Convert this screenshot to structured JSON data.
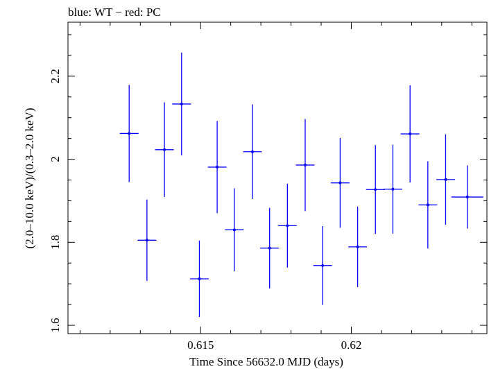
{
  "chart_data": {
    "type": "scatter",
    "title": "blue: WT − red: PC",
    "xlabel": "Time Since 56632.0 MJD (days)",
    "ylabel": "(2.0–10.0 keV)/(0.3–2.0 keV)",
    "xlim": [
      0.6106,
      0.6245
    ],
    "ylim": [
      1.58,
      2.33
    ],
    "xticks_major": [
      0.615,
      0.62
    ],
    "xtick_labels": [
      "0.615",
      "0.62"
    ],
    "xticks_minor": [
      0.611,
      0.612,
      0.613,
      0.614,
      0.616,
      0.617,
      0.618,
      0.619,
      0.621,
      0.622,
      0.623,
      0.624
    ],
    "yticks_major": [
      1.6,
      1.8,
      2.0,
      2.2
    ],
    "ytick_labels": [
      "1.6",
      "1.8",
      "2",
      "2.2"
    ],
    "yticks_minor": [
      1.65,
      1.7,
      1.75,
      1.85,
      1.9,
      1.95,
      2.05,
      2.1,
      2.15,
      2.25,
      2.3
    ],
    "grid": false,
    "series": [
      {
        "color": "#0000ff",
        "points": [
          {
            "x": 0.61263,
            "xerr": 0.00031,
            "y": 2.062,
            "yerr": 0.117
          },
          {
            "x": 0.61322,
            "xerr": 0.00031,
            "y": 1.805,
            "yerr": 0.098
          },
          {
            "x": 0.6138,
            "xerr": 0.00031,
            "y": 2.023,
            "yerr": 0.114
          },
          {
            "x": 0.61437,
            "xerr": 0.00031,
            "y": 2.133,
            "yerr": 0.124
          },
          {
            "x": 0.61496,
            "xerr": 0.00031,
            "y": 1.712,
            "yerr": 0.092
          },
          {
            "x": 0.61555,
            "xerr": 0.00031,
            "y": 1.981,
            "yerr": 0.111
          },
          {
            "x": 0.61612,
            "xerr": 0.00031,
            "y": 1.83,
            "yerr": 0.1
          },
          {
            "x": 0.61672,
            "xerr": 0.00031,
            "y": 2.018,
            "yerr": 0.114
          },
          {
            "x": 0.61729,
            "xerr": 0.00031,
            "y": 1.786,
            "yerr": 0.097
          },
          {
            "x": 0.61788,
            "xerr": 0.00031,
            "y": 1.84,
            "yerr": 0.101
          },
          {
            "x": 0.61847,
            "xerr": 0.00031,
            "y": 1.986,
            "yerr": 0.111
          },
          {
            "x": 0.61905,
            "xerr": 0.00031,
            "y": 1.744,
            "yerr": 0.095
          },
          {
            "x": 0.61963,
            "xerr": 0.00031,
            "y": 1.943,
            "yerr": 0.108
          },
          {
            "x": 0.62021,
            "xerr": 0.00031,
            "y": 1.789,
            "yerr": 0.097
          },
          {
            "x": 0.6208,
            "xerr": 0.00031,
            "y": 1.927,
            "yerr": 0.107
          },
          {
            "x": 0.62138,
            "xerr": 0.00031,
            "y": 1.928,
            "yerr": 0.107
          },
          {
            "x": 0.62195,
            "xerr": 0.00031,
            "y": 2.061,
            "yerr": 0.117
          },
          {
            "x": 0.62254,
            "xerr": 0.00031,
            "y": 1.89,
            "yerr": 0.105
          },
          {
            "x": 0.62313,
            "xerr": 0.00031,
            "y": 1.951,
            "yerr": 0.109
          },
          {
            "x": 0.62385,
            "xerr": 0.00053,
            "y": 1.909,
            "yerr": 0.076
          }
        ]
      }
    ]
  }
}
